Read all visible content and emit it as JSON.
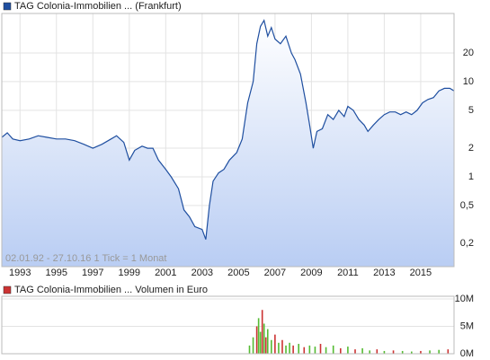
{
  "chart_data": [
    {
      "type": "line",
      "log_scale": true,
      "grid": true,
      "annotation": "02.01.92 - 27.10.16   1 Tick = 1 Monat",
      "xlim": [
        1992,
        2016.83
      ],
      "xticks": [
        1993,
        1995,
        1997,
        1999,
        2001,
        2003,
        2005,
        2007,
        2009,
        2011,
        2013,
        2015
      ],
      "ylim": [
        0.114,
        52
      ],
      "yticks": [
        {
          "value": 0.2,
          "label": "0,2"
        },
        {
          "value": 0.5,
          "label": "0,5"
        },
        1,
        2,
        5,
        10,
        20
      ],
      "x": [
        1992.0,
        1992.3,
        1992.6,
        1993.0,
        1993.5,
        1994.0,
        1994.5,
        1995.0,
        1995.5,
        1996.0,
        1996.5,
        1997.0,
        1997.5,
        1998.0,
        1998.3,
        1998.7,
        1999.0,
        1999.3,
        1999.7,
        2000.0,
        2000.3,
        2000.6,
        2001.0,
        2001.3,
        2001.7,
        2002.0,
        2002.3,
        2002.6,
        2003.0,
        2003.2,
        2003.4,
        2003.6,
        2003.9,
        2004.2,
        2004.5,
        2004.9,
        2005.2,
        2005.5,
        2005.8,
        2006.0,
        2006.2,
        2006.4,
        2006.6,
        2006.8,
        2007.0,
        2007.3,
        2007.6,
        2007.9,
        2008.1,
        2008.4,
        2008.7,
        2008.9,
        2009.1,
        2009.3,
        2009.6,
        2009.9,
        2010.2,
        2010.5,
        2010.8,
        2011.0,
        2011.3,
        2011.6,
        2011.9,
        2012.1,
        2012.4,
        2012.7,
        2013.0,
        2013.3,
        2013.6,
        2013.9,
        2014.2,
        2014.5,
        2014.8,
        2015.1,
        2015.4,
        2015.7,
        2016.0,
        2016.3,
        2016.6,
        2016.83
      ],
      "series": [
        {
          "name": "TAG Colonia-Immobilien ... (Frankfurt)",
          "color": "#1f4fa0",
          "values": [
            2.6,
            2.9,
            2.5,
            2.4,
            2.5,
            2.7,
            2.6,
            2.5,
            2.5,
            2.4,
            2.2,
            2.0,
            2.2,
            2.5,
            2.7,
            2.3,
            1.5,
            1.9,
            2.1,
            2.0,
            2.0,
            1.5,
            1.2,
            1.0,
            0.75,
            0.45,
            0.38,
            0.3,
            0.28,
            0.22,
            0.5,
            0.9,
            1.1,
            1.2,
            1.5,
            1.8,
            2.5,
            6,
            10,
            25,
            38,
            44,
            30,
            37,
            28,
            25,
            30,
            20,
            17,
            12,
            6,
            3.5,
            2.0,
            3.0,
            3.2,
            4.5,
            4.0,
            5.0,
            4.3,
            5.5,
            5.0,
            4.0,
            3.5,
            3.0,
            3.5,
            4.0,
            4.5,
            4.8,
            4.8,
            4.5,
            4.8,
            4.5,
            5.0,
            6.0,
            6.5,
            6.8,
            8.0,
            8.5,
            8.5,
            8.0
          ]
        }
      ]
    },
    {
      "type": "bar",
      "grid": true,
      "xlim": [
        1992,
        2016.83
      ],
      "ylim": [
        0,
        10500000
      ],
      "yticks": [
        {
          "value": 0,
          "label": "0M"
        },
        {
          "value": 5000000,
          "label": "5M"
        },
        {
          "value": 10000000,
          "label": "10M"
        }
      ],
      "x": [
        2005.6,
        2005.8,
        2006.0,
        2006.1,
        2006.2,
        2006.3,
        2006.4,
        2006.5,
        2006.6,
        2006.8,
        2007.0,
        2007.2,
        2007.4,
        2007.6,
        2007.8,
        2008.0,
        2008.3,
        2008.6,
        2008.9,
        2009.2,
        2009.5,
        2009.8,
        2010.2,
        2010.6,
        2011.0,
        2011.4,
        2011.8,
        2012.2,
        2012.6,
        2013.0,
        2013.5,
        2014.0,
        2014.5,
        2015.0,
        2015.5,
        2016.0,
        2016.5
      ],
      "series": [
        {
          "name": "TAG Colonia-Immobilien ... Volumen in Euro",
          "color": "#cc3333",
          "values": [
            1500000,
            3000000,
            5000000,
            6500000,
            4000000,
            8000000,
            5500000,
            3000000,
            4500000,
            2500000,
            3500000,
            2000000,
            2500000,
            1500000,
            2000000,
            1500000,
            1800000,
            1200000,
            1500000,
            1300000,
            1800000,
            1200000,
            1500000,
            1000000,
            1300000,
            800000,
            1000000,
            600000,
            800000,
            500000,
            600000,
            500000,
            400000,
            500000,
            600000,
            700000,
            800000
          ],
          "colors": [
            "#55bb33",
            "#55bb33",
            "#cc3333",
            "#55bb33",
            "#55bb33",
            "#cc3333",
            "#55bb33",
            "#cc3333",
            "#55bb33",
            "#55bb33",
            "#cc3333",
            "#55bb33",
            "#cc3333",
            "#55bb33",
            "#55bb33",
            "#cc3333",
            "#55bb33",
            "#cc3333",
            "#55bb33",
            "#55bb33",
            "#cc3333",
            "#55bb33",
            "#55bb33",
            "#cc3333",
            "#55bb33",
            "#cc3333",
            "#55bb33",
            "#55bb33",
            "#cc3333",
            "#55bb33",
            "#cc3333",
            "#55bb33",
            "#55bb33",
            "#cc3333",
            "#55bb33",
            "#55bb33",
            "#cc3333"
          ]
        }
      ]
    }
  ]
}
